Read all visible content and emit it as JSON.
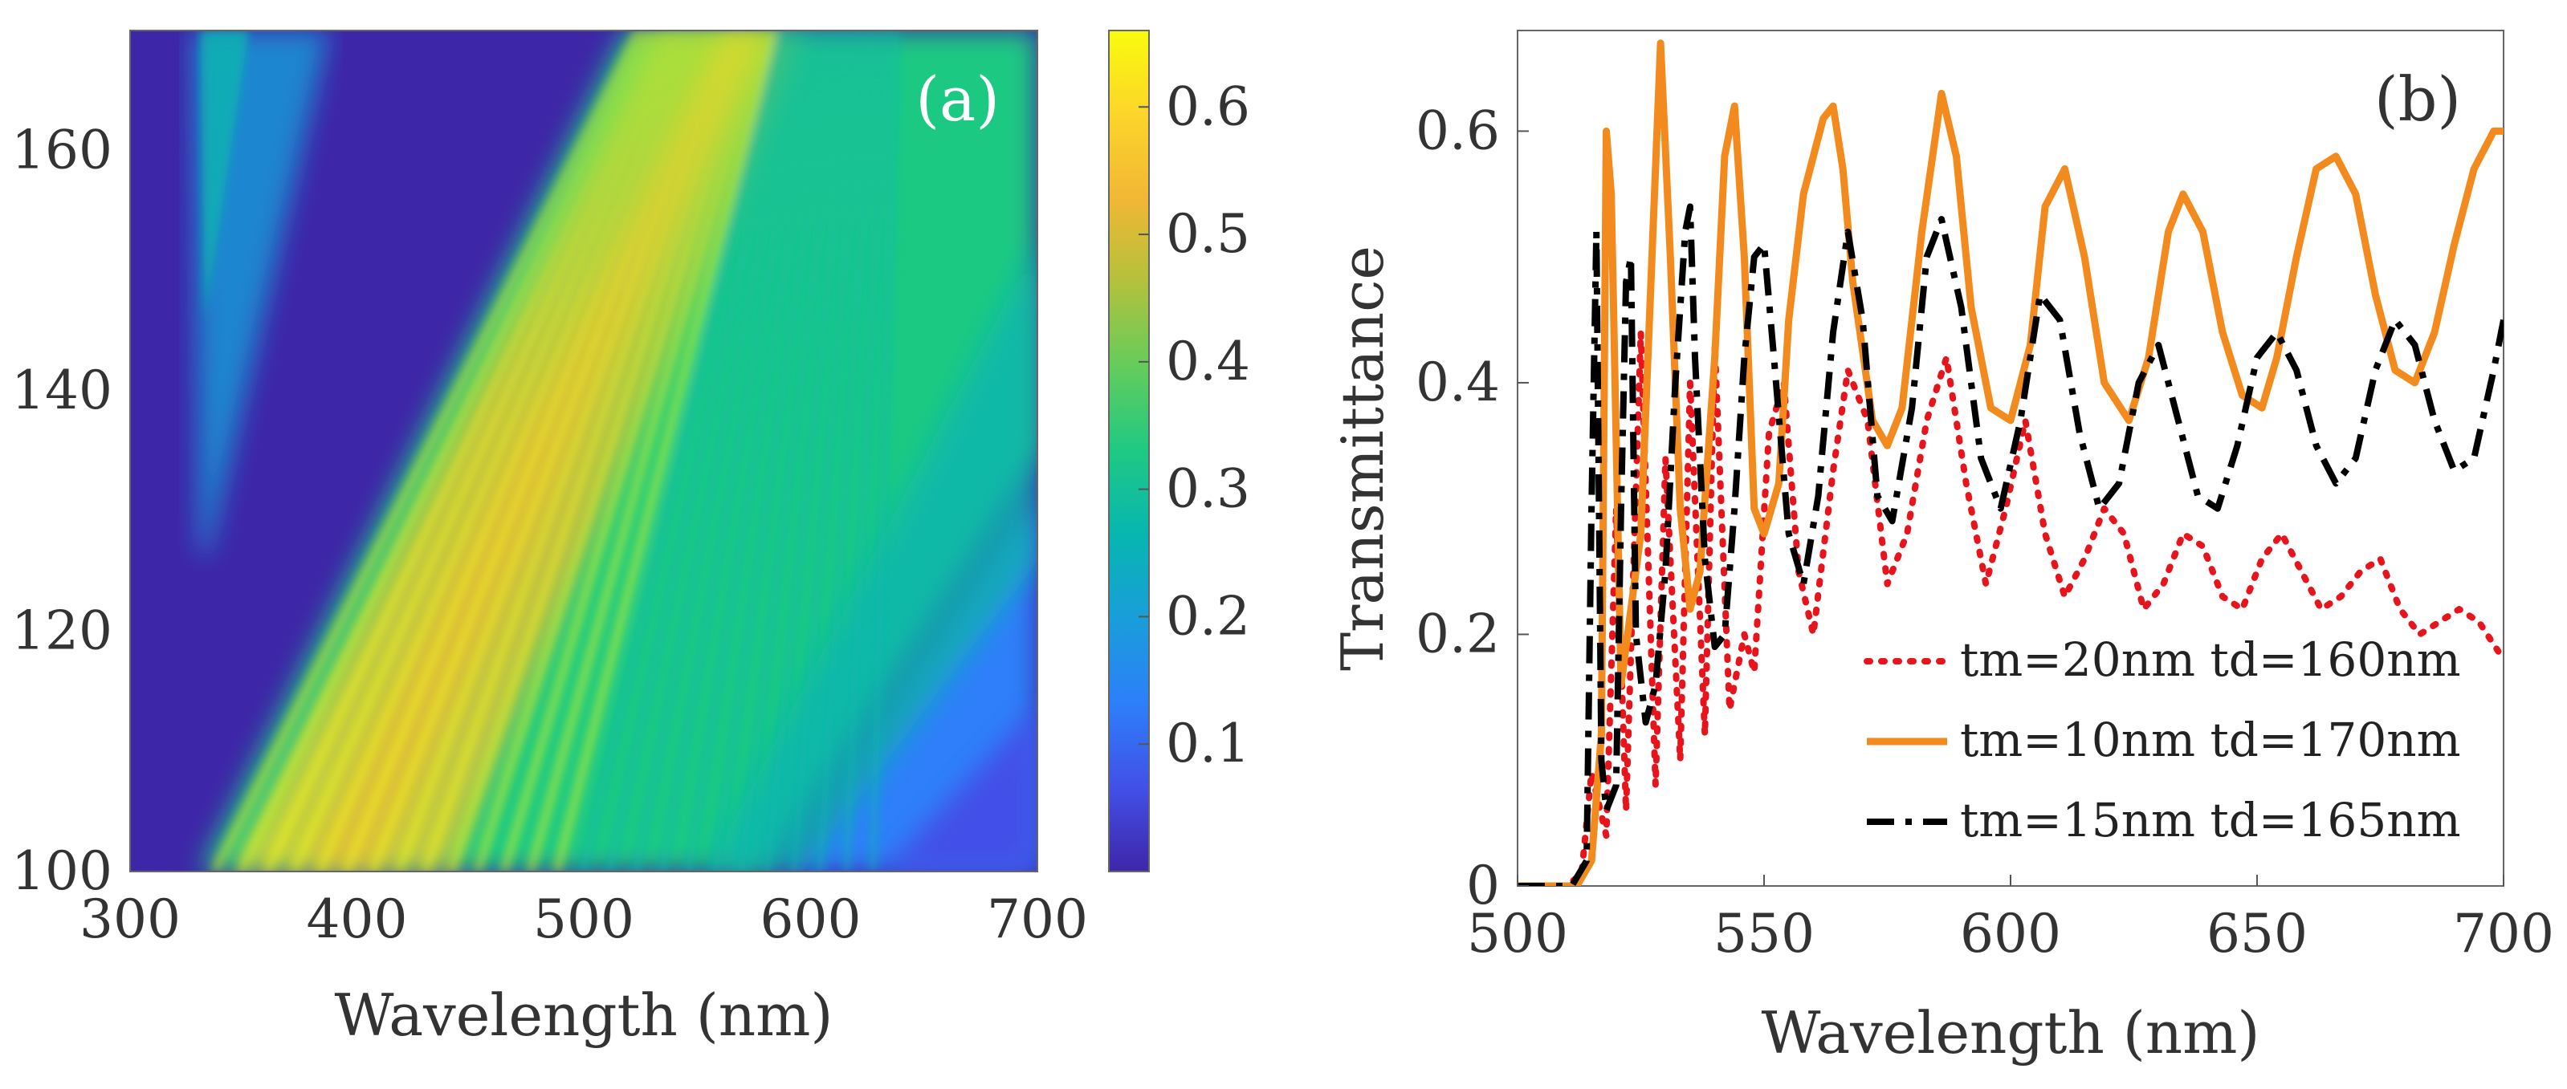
{
  "chart_data": [
    {
      "panel": "(a)",
      "type": "heatmap",
      "xlabel": "Wavelength (nm)",
      "ylabel": "",
      "xlim": [
        300,
        700
      ],
      "ylim": [
        100,
        170
      ],
      "xticks": [
        300,
        400,
        500,
        600,
        700
      ],
      "yticks": [
        100,
        120,
        140,
        160
      ],
      "colorbar": {
        "ticks": [
          0.1,
          0.2,
          0.3,
          0.4,
          0.5,
          0.6
        ],
        "range": [
          0.0,
          0.66
        ]
      },
      "colormap": [
        "#3e26a8",
        "#4250e8",
        "#2d7ff9",
        "#199eda",
        "#07b6b0",
        "#1fc983",
        "#64cc5c",
        "#b3c13c",
        "#f1b735",
        "#fcd52a",
        "#f9fb0e"
      ],
      "description_features": {
        "dark_region_below": "minimum near 0 for short wavelength cutoff ~ 330nm",
        "bright_band": "0.5-0.6 along diagonal from (350nm,100) to (550nm,170)"
      }
    },
    {
      "panel": "(b)",
      "type": "line",
      "xlabel": "Wavelength (nm)",
      "ylabel": "Transmittance",
      "xlim": [
        500,
        700
      ],
      "ylim": [
        0,
        0.68
      ],
      "xticks": [
        500,
        550,
        600,
        650,
        700
      ],
      "yticks": [
        0,
        0.2,
        0.4,
        0.6
      ],
      "series": [
        {
          "name": "tm=20nm td=160nm",
          "color": "#e8141c",
          "style": "dotted",
          "x": [
            500,
            510,
            513,
            515,
            518,
            520,
            522,
            525,
            528,
            530,
            533,
            535,
            538,
            540,
            543,
            546,
            548,
            551,
            554,
            557,
            560,
            564,
            567,
            571,
            575,
            579,
            583,
            587,
            591,
            595,
            599,
            603,
            607,
            611,
            615,
            619,
            623,
            627,
            631,
            635,
            639,
            643,
            647,
            651,
            655,
            659,
            663,
            667,
            671,
            675,
            679,
            683,
            687,
            691,
            695,
            700
          ],
          "y": [
            0,
            0,
            0.01,
            0.09,
            0.04,
            0.3,
            0.06,
            0.44,
            0.08,
            0.34,
            0.1,
            0.4,
            0.12,
            0.43,
            0.14,
            0.2,
            0.17,
            0.36,
            0.4,
            0.25,
            0.2,
            0.33,
            0.41,
            0.37,
            0.24,
            0.28,
            0.37,
            0.42,
            0.32,
            0.24,
            0.3,
            0.37,
            0.28,
            0.23,
            0.26,
            0.3,
            0.28,
            0.22,
            0.24,
            0.28,
            0.27,
            0.23,
            0.22,
            0.26,
            0.28,
            0.25,
            0.22,
            0.23,
            0.25,
            0.26,
            0.22,
            0.2,
            0.21,
            0.22,
            0.21,
            0.18
          ]
        },
        {
          "name": "tm=10nm td=170nm",
          "color": "#f28a1e",
          "style": "solid",
          "x": [
            500,
            512,
            515,
            517,
            518,
            519,
            521,
            525,
            529,
            531,
            533,
            535,
            537,
            540,
            542,
            544,
            546,
            548,
            550,
            553,
            555,
            558,
            562,
            564,
            566,
            568,
            572,
            575,
            578,
            582,
            586,
            589,
            592,
            596,
            600,
            604,
            607,
            611,
            615,
            619,
            624,
            628,
            632,
            635,
            639,
            643,
            647,
            651,
            654,
            658,
            662,
            666,
            670,
            674,
            678,
            682,
            686,
            690,
            694,
            698,
            700
          ],
          "y": [
            0,
            0,
            0.02,
            0.12,
            0.6,
            0.55,
            0.16,
            0.28,
            0.67,
            0.5,
            0.3,
            0.22,
            0.25,
            0.42,
            0.58,
            0.62,
            0.5,
            0.3,
            0.28,
            0.32,
            0.45,
            0.55,
            0.61,
            0.62,
            0.57,
            0.48,
            0.37,
            0.35,
            0.38,
            0.52,
            0.63,
            0.58,
            0.46,
            0.38,
            0.37,
            0.43,
            0.54,
            0.57,
            0.5,
            0.4,
            0.37,
            0.42,
            0.52,
            0.55,
            0.52,
            0.44,
            0.39,
            0.38,
            0.42,
            0.5,
            0.57,
            0.58,
            0.55,
            0.47,
            0.41,
            0.4,
            0.44,
            0.51,
            0.57,
            0.6,
            0.6
          ]
        },
        {
          "name": "tm=15nm td=165nm",
          "color": "#000000",
          "style": "dashdot",
          "x": [
            500,
            511,
            514,
            515,
            516,
            517,
            518,
            520,
            521,
            522,
            523,
            524,
            526,
            528,
            530,
            532,
            534,
            535,
            536,
            538,
            540,
            542,
            544,
            546,
            548,
            550,
            552,
            555,
            558,
            561,
            564,
            567,
            570,
            573,
            576,
            580,
            583,
            586,
            590,
            594,
            598,
            602,
            606,
            610,
            614,
            618,
            622,
            626,
            630,
            634,
            638,
            642,
            646,
            650,
            654,
            658,
            662,
            666,
            670,
            674,
            678,
            682,
            686,
            690,
            694,
            698,
            700
          ],
          "y": [
            0,
            0,
            0.02,
            0.3,
            0.52,
            0.1,
            0.06,
            0.08,
            0.3,
            0.48,
            0.5,
            0.2,
            0.13,
            0.16,
            0.25,
            0.4,
            0.52,
            0.54,
            0.42,
            0.26,
            0.19,
            0.2,
            0.3,
            0.42,
            0.5,
            0.51,
            0.42,
            0.28,
            0.24,
            0.31,
            0.44,
            0.52,
            0.45,
            0.31,
            0.29,
            0.38,
            0.5,
            0.53,
            0.46,
            0.34,
            0.3,
            0.37,
            0.47,
            0.45,
            0.36,
            0.3,
            0.32,
            0.4,
            0.43,
            0.37,
            0.31,
            0.3,
            0.35,
            0.42,
            0.44,
            0.41,
            0.35,
            0.32,
            0.34,
            0.41,
            0.45,
            0.43,
            0.37,
            0.33,
            0.34,
            0.41,
            0.45
          ]
        }
      ],
      "legend": {
        "position": "bottom-right"
      }
    }
  ],
  "panels": {
    "a": {
      "label": "(a)"
    },
    "b": {
      "label": "(b)"
    }
  }
}
